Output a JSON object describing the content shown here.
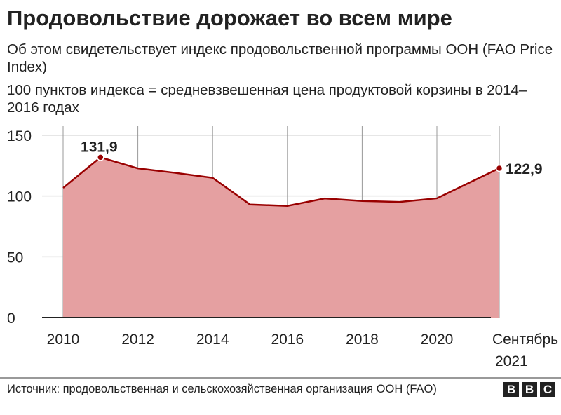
{
  "title": "Продовольствие дорожает во всем мире",
  "subtitle1": "Об этом свидетельствует индекс продовольственной программы ООН (FAO Price Index)",
  "subtitle2": "100 пунктов индекса = средневзвешенная цена продуктовой корзины в 2014–2016 годах",
  "source": "Источник: продовольственная и сельскохозяйственная организация ООН (FAO)",
  "logo": "BBC",
  "chart_data": {
    "type": "area",
    "x": [
      2010,
      2011,
      2012,
      2013,
      2014,
      2015,
      2016,
      2017,
      2018,
      2019,
      2020,
      2021.67
    ],
    "values": [
      106.7,
      131.9,
      122.8,
      119.1,
      115.0,
      93.0,
      91.9,
      98.0,
      95.9,
      95.1,
      98.1,
      122.9
    ],
    "ylim": [
      0,
      150
    ],
    "yticks": [
      0,
      50,
      100,
      150
    ],
    "xtick_labels": [
      {
        "x": 2010,
        "label": "2010"
      },
      {
        "x": 2012,
        "label": "2012"
      },
      {
        "x": 2014,
        "label": "2014"
      },
      {
        "x": 2016,
        "label": "2016"
      },
      {
        "x": 2018,
        "label": "2018"
      },
      {
        "x": 2020,
        "label": "2020"
      },
      {
        "x": 2021.67,
        "label": "Сентябрь 2021"
      }
    ],
    "annotations": [
      {
        "x": 2011,
        "label": "131,9"
      },
      {
        "x": 2021.67,
        "label": "122,9"
      }
    ],
    "grid": true,
    "line_color": "#990000",
    "fill_color": "#e5a0a1"
  }
}
